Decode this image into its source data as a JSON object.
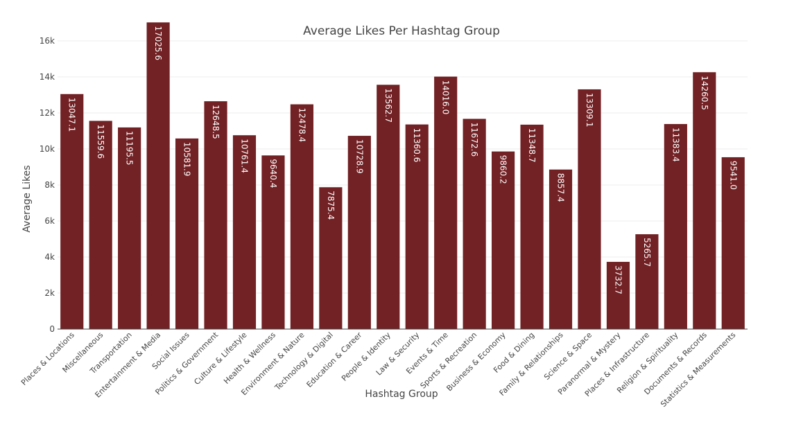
{
  "chart_data": {
    "type": "bar",
    "title": "Average Likes Per Hashtag Group",
    "xlabel": "Hashtag Group",
    "ylabel": "Average Likes",
    "ylim": [
      0,
      17500
    ],
    "yticks": [
      0,
      2000,
      4000,
      6000,
      8000,
      10000,
      12000,
      14000,
      16000
    ],
    "ytick_labels": [
      "0",
      "2k",
      "4k",
      "6k",
      "8k",
      "10k",
      "12k",
      "14k",
      "16k"
    ],
    "grid": true,
    "bar_color": "#722124",
    "categories": [
      "Places & Locations",
      "Miscellaneous",
      "Transportation",
      "Entertainment & Media",
      "Social Issues",
      "Politics & Government",
      "Culture & Lifestyle",
      "Health & Wellness",
      "Environment & Nature",
      "Technology & Digital",
      "Education & Career",
      "People & Identity",
      "Law & Security",
      "Events & Time",
      "Sports & Recreation",
      "Business & Economy",
      "Food & Dining",
      "Family & Relationships",
      "Science & Space",
      "Paranormal & Mystery",
      "Places & Infrastructure",
      "Religion & Spirituality",
      "Documents & Records",
      "Statistics & Measurements"
    ],
    "values": [
      13047.1,
      11559.6,
      11195.5,
      17025.6,
      10581.9,
      12648.5,
      10761.4,
      9640.4,
      12478.4,
      7875.4,
      10728.9,
      13562.7,
      11360.6,
      14016.0,
      11672.6,
      9860.2,
      11348.7,
      8857.4,
      13309.1,
      3732.7,
      5265.7,
      11383.4,
      14260.5,
      9541.0
    ],
    "data_labels": [
      "13047.1",
      "11559.6",
      "11195.5",
      "17025.6",
      "10581.9",
      "12648.5",
      "10761.4",
      "9640.4",
      "12478.4",
      "7875.4",
      "10728.9",
      "13562.7",
      "11360.6",
      "14016.0",
      "11672.6",
      "9860.2",
      "11348.7",
      "8857.4",
      "13309.1",
      "3732.7",
      "5265.7",
      "11383.4",
      "14260.5",
      "9541.0"
    ]
  }
}
